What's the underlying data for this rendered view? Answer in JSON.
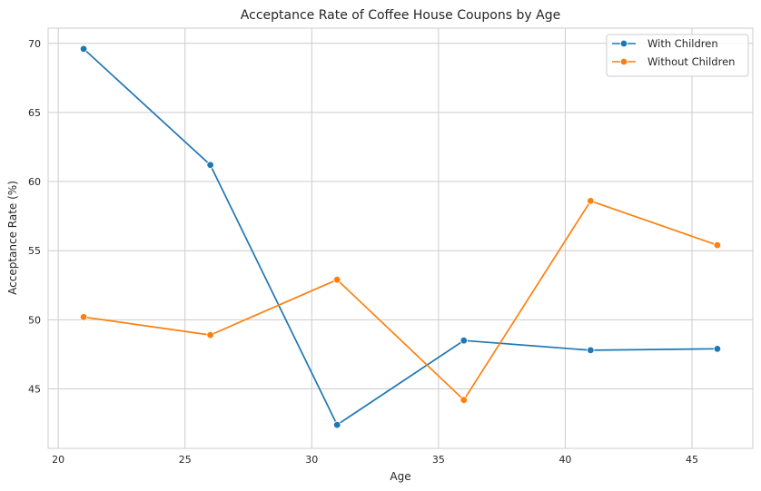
{
  "chart_data": {
    "type": "line",
    "title": "Acceptance Rate of Coffee House Coupons by Age",
    "xlabel": "Age",
    "ylabel": "Acceptance Rate (%)",
    "xlim": [
      19.6,
      47.4
    ],
    "ylim": [
      40.7,
      71.1
    ],
    "xticks": [
      20,
      25,
      30,
      35,
      40,
      45
    ],
    "yticks": [
      45,
      50,
      55,
      60,
      65,
      70
    ],
    "grid": true,
    "legend_position": "top-right",
    "x": [
      21,
      26,
      31,
      36,
      41,
      46
    ],
    "series": [
      {
        "name": "With Children",
        "color": "#1f77b4",
        "values": [
          69.6,
          61.2,
          42.4,
          48.5,
          47.8,
          47.9
        ]
      },
      {
        "name": "Without Children",
        "color": "#ff7f0e",
        "values": [
          50.2,
          48.9,
          52.9,
          44.2,
          58.6,
          55.4
        ]
      }
    ]
  }
}
